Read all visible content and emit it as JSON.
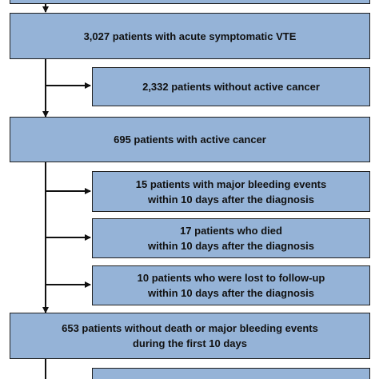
{
  "flowchart": {
    "boxes": [
      {
        "id": "top-partial",
        "lines": []
      },
      {
        "id": "acute-vte",
        "lines": [
          "3,027 patients with acute symptomatic VTE"
        ]
      },
      {
        "id": "no-cancer",
        "lines": [
          "2,332 patients without active cancer"
        ]
      },
      {
        "id": "active-cancer",
        "lines": [
          "695 patients with active cancer"
        ]
      },
      {
        "id": "major-bleeding",
        "lines": [
          "15 patients with major bleeding events",
          "within 10 days after the diagnosis"
        ]
      },
      {
        "id": "died",
        "lines": [
          "17 patients who died",
          "within 10 days after the diagnosis"
        ]
      },
      {
        "id": "lost-followup",
        "lines": [
          "10 patients who were lost to follow-up",
          "within 10 days after the diagnosis"
        ]
      },
      {
        "id": "without-death",
        "lines": [
          "653 patients without death or major bleeding events",
          "during the first 10 days"
        ]
      },
      {
        "id": "bottom-partial",
        "lines": []
      }
    ]
  },
  "colors": {
    "box_fill": "#95b3d7",
    "box_border": "#1f1f1f",
    "arrow": "#111111",
    "text": "#111111"
  }
}
